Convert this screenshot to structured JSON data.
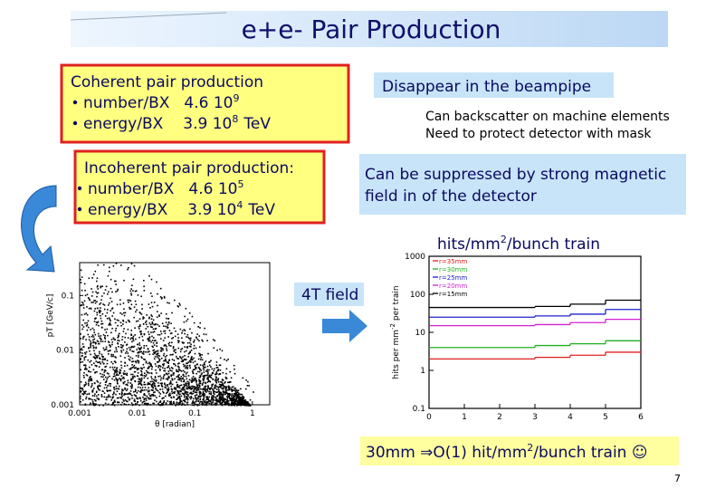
{
  "title": "e+e- Pair Production",
  "coherent": {
    "heading": "Coherent pair production",
    "items": [
      {
        "label": "number/BX",
        "mantissa": "4.6 10",
        "exp": "9"
      },
      {
        "label": "energy/BX",
        "mantissa": "3.9 10",
        "exp": "8",
        "unit": "TeV"
      }
    ]
  },
  "beampipe_note": "Disappear in the beampipe",
  "backscatter_lines": [
    "Can backscatter on machine elements",
    "Need to protect detector with mask"
  ],
  "incoherent": {
    "heading": "Incoherent pair production:",
    "items": [
      {
        "label": "number/BX",
        "mantissa": "4.6 10",
        "exp": "5"
      },
      {
        "label": "energy/BX",
        "mantissa": "3.9 10",
        "exp": "4",
        "unit": "TeV"
      }
    ]
  },
  "suppression_lines": [
    "Can be suppressed by strong magnetic",
    "field in of the detector"
  ],
  "field_label": "4T field",
  "hits_label": {
    "text": "hits/mm",
    "exp": "2",
    "tail": "/bunch train"
  },
  "scatter_plot": {
    "x_label": "θ [radian]",
    "y_label": "pT [GeV/c]",
    "xlim": [
      0.001,
      2
    ],
    "ylim": [
      0.001,
      0.4
    ],
    "xticks": [
      0.001,
      0.01,
      0.1,
      1
    ],
    "yticks": [
      0.001,
      0.01,
      0.1
    ],
    "log_scale": true
  },
  "hits_plot": {
    "type": "step",
    "y_label": {
      "text": "hits per mm",
      "exp": "-2",
      "tail": " per train"
    },
    "bins": [
      0,
      1,
      2,
      3,
      4,
      5,
      6
    ],
    "xlim": [
      0,
      6
    ],
    "ylim": [
      0.1,
      1000
    ],
    "xticks": [
      0,
      1,
      2,
      3,
      4,
      5,
      6
    ],
    "yticks": [
      0.1,
      1,
      10,
      100,
      1000
    ],
    "log_scale": true,
    "series": [
      {
        "name": "r=35mm",
        "color": "#e02020",
        "values": [
          2,
          2,
          2,
          2.2,
          2.5,
          3
        ]
      },
      {
        "name": "r=30mm",
        "color": "#20b020",
        "values": [
          4,
          4,
          4,
          4.5,
          5,
          6
        ]
      },
      {
        "name": "r=25mm",
        "color": "#2020d0",
        "values": [
          25,
          25,
          25,
          27,
          30,
          40
        ]
      },
      {
        "name": "r=20mm",
        "color": "#d020d0",
        "values": [
          15,
          15,
          15,
          16,
          18,
          22
        ]
      },
      {
        "name": "r=15mm",
        "color": "#000000",
        "values": [
          45,
          45,
          45,
          48,
          55,
          70
        ]
      }
    ]
  },
  "conclusion": {
    "text": "30mm ⇒O(1) hit/mm",
    "exp": "2",
    "tail": "/bunch train ☺"
  },
  "page_number": "7"
}
